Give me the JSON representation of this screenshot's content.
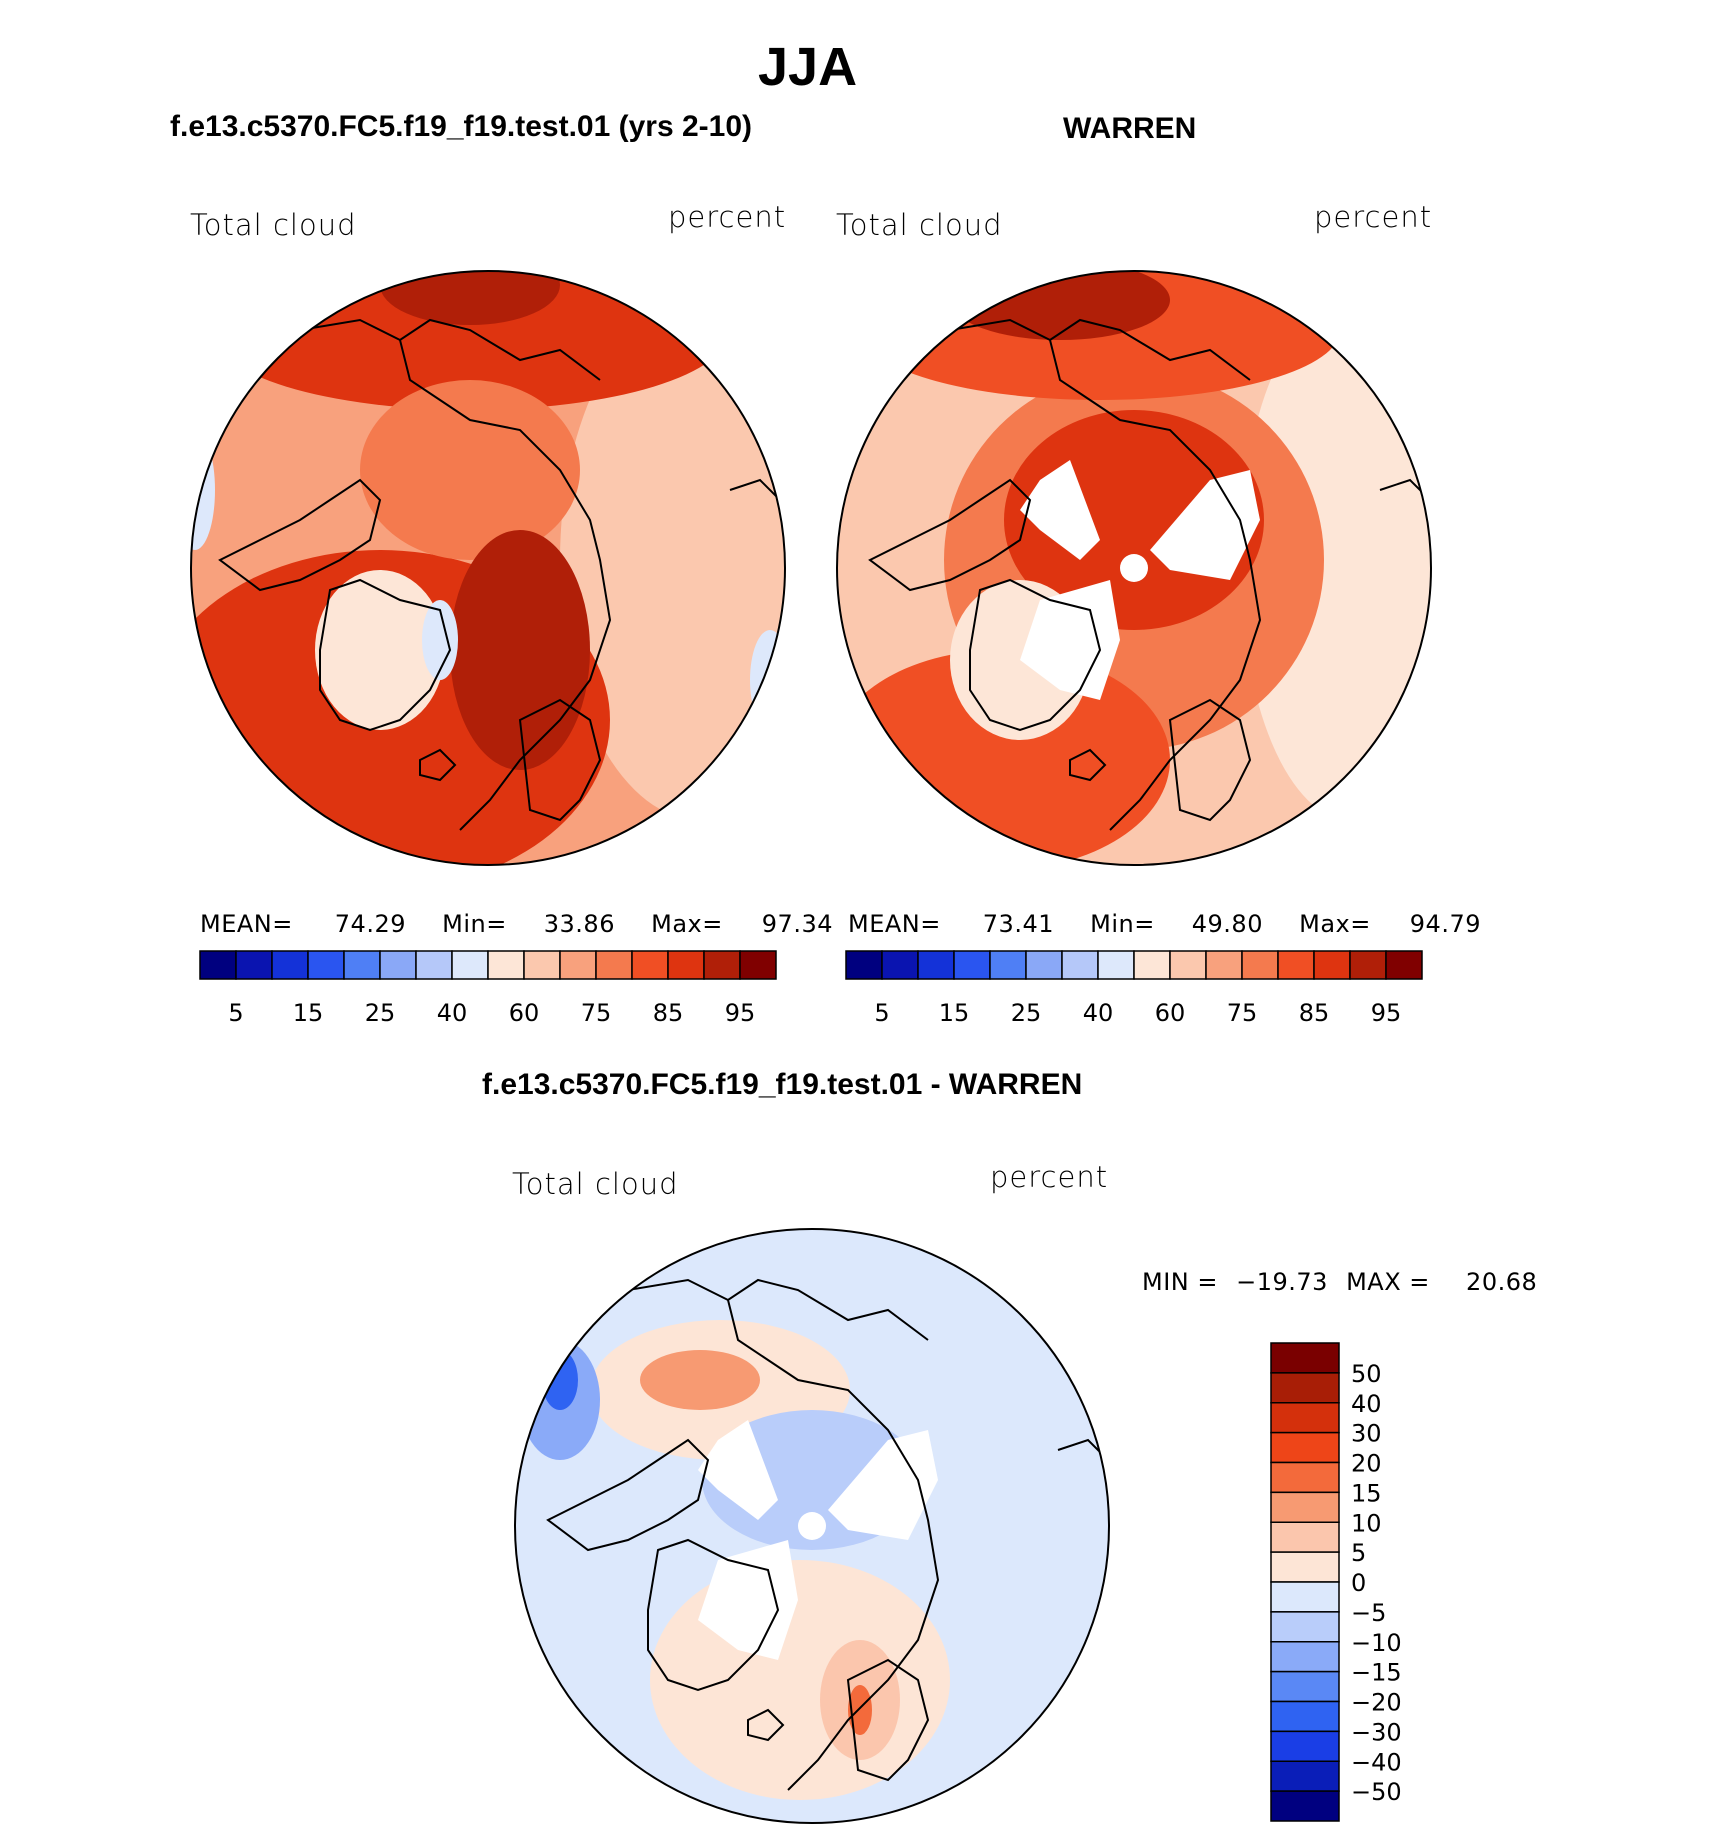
{
  "figure": {
    "season": "JJA",
    "left_title": "f.e13.c5370.FC5.f19_f19.test.01 (yrs 2-10)",
    "right_title": "WARREN",
    "diff_title": "f.e13.c5370.FC5.f19_f19.test.01 - WARREN"
  },
  "colors": {
    "abs_scale": [
      "#00007f",
      "#0a14b0",
      "#1432d8",
      "#2a55f0",
      "#4f7ff5",
      "#8aa8f7",
      "#b5c8f9",
      "#dde8fb",
      "#fde6d7",
      "#fbc8ae",
      "#f8a17d",
      "#f47a4e",
      "#f04f24",
      "#de3410",
      "#b01f08",
      "#800000"
    ],
    "diff_scale": [
      "#000080",
      "#0a1eb8",
      "#1a3ee6",
      "#2f63f2",
      "#5a88f5",
      "#8aaaf8",
      "#b9cdfa",
      "#dce8fc",
      "#fde5d6",
      "#fbc6ad",
      "#f79a72",
      "#f36a3b",
      "#ee4518",
      "#d4300c",
      "#a81e06",
      "#7a0000"
    ],
    "coastline": "#000000"
  },
  "chart_data": [
    {
      "type": "polar-contour-map",
      "panel": "model",
      "title": "f.e13.c5370.FC5.f19_f19.test.01 (yrs 2-10)",
      "variable": "Total cloud",
      "units": "percent",
      "stats": {
        "mean_label": "MEAN=",
        "mean": "74.29",
        "min_label": "Min=",
        "min": "33.86",
        "max_label": "Max=",
        "max": "97.34"
      },
      "colorbar_ticks": [
        "5",
        "15",
        "25",
        "40",
        "60",
        "75",
        "85",
        "95"
      ],
      "colorbar_levels": [
        5,
        10,
        15,
        20,
        25,
        30,
        40,
        50,
        60,
        70,
        75,
        80,
        85,
        90,
        95
      ]
    },
    {
      "type": "polar-contour-map",
      "panel": "obs",
      "title": "WARREN",
      "variable": "Total cloud",
      "units": "percent",
      "stats": {
        "mean_label": "MEAN=",
        "mean": "73.41",
        "min_label": "Min=",
        "min": "49.80",
        "max_label": "Max=",
        "max": "94.79"
      },
      "colorbar_ticks": [
        "5",
        "15",
        "25",
        "40",
        "60",
        "75",
        "85",
        "95"
      ],
      "colorbar_levels": [
        5,
        10,
        15,
        20,
        25,
        30,
        40,
        50,
        60,
        70,
        75,
        80,
        85,
        90,
        95
      ]
    },
    {
      "type": "polar-contour-map",
      "panel": "difference",
      "title": "f.e13.c5370.FC5.f19_f19.test.01 - WARREN",
      "variable": "Total cloud",
      "units": "percent",
      "stats": {
        "min_label": "MIN =",
        "min": "−19.73",
        "max_label": "MAX =",
        "max": "20.68"
      },
      "colorbar_ticks": [
        "50",
        "40",
        "30",
        "20",
        "15",
        "10",
        "5",
        "0",
        "−5",
        "−10",
        "−15",
        "−20",
        "−30",
        "−40",
        "−50"
      ]
    }
  ]
}
